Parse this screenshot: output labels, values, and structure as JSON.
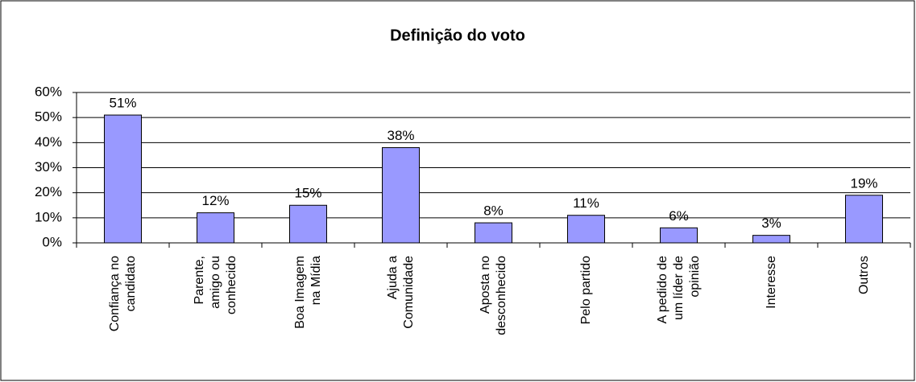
{
  "chart_data": {
    "type": "bar",
    "title": "Definição do voto",
    "categories": [
      "Confiança no\ncandidato",
      "Parente,\namigo ou\nconhecido",
      "Boa Imagem\nna Mídia",
      "Ajuda a\nComunidade",
      "Aposta no\ndesconhecido",
      "Pelo partido",
      "A pedido de\num líder de\nopinião",
      "Interesse",
      "Outros"
    ],
    "values": [
      51,
      12,
      15,
      38,
      8,
      11,
      6,
      3,
      19
    ],
    "value_labels": [
      "51%",
      "12%",
      "15%",
      "38%",
      "8%",
      "11%",
      "6%",
      "3%",
      "19%"
    ],
    "color": "#9999ff",
    "ylim": [
      0,
      60
    ],
    "yticks": [
      {
        "value": 0,
        "label": "0%"
      },
      {
        "value": 10,
        "label": "10%"
      },
      {
        "value": 20,
        "label": "20%"
      },
      {
        "value": 30,
        "label": "30%"
      },
      {
        "value": 40,
        "label": "40%"
      },
      {
        "value": 50,
        "label": "50%"
      },
      {
        "value": 60,
        "label": "60%"
      }
    ],
    "grid": true
  }
}
